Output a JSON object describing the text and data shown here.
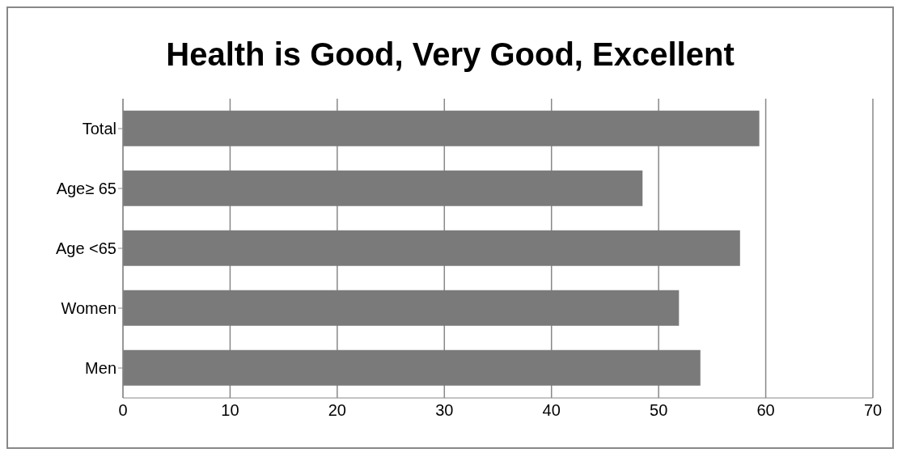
{
  "chart_data": {
    "type": "bar",
    "title": "Health is Good, Very Good, Excellent",
    "orientation": "horizontal",
    "categories": [
      "Total",
      "Age≥ 65",
      "Age <65",
      "Women",
      "Men"
    ],
    "values": [
      59.4,
      48.5,
      57.6,
      51.9,
      53.9
    ],
    "color": "#7a7a7a",
    "xlim": [
      0,
      70
    ],
    "xticks": [
      0,
      10,
      20,
      30,
      40,
      50,
      60,
      70
    ],
    "grid": "x",
    "legend": false
  }
}
